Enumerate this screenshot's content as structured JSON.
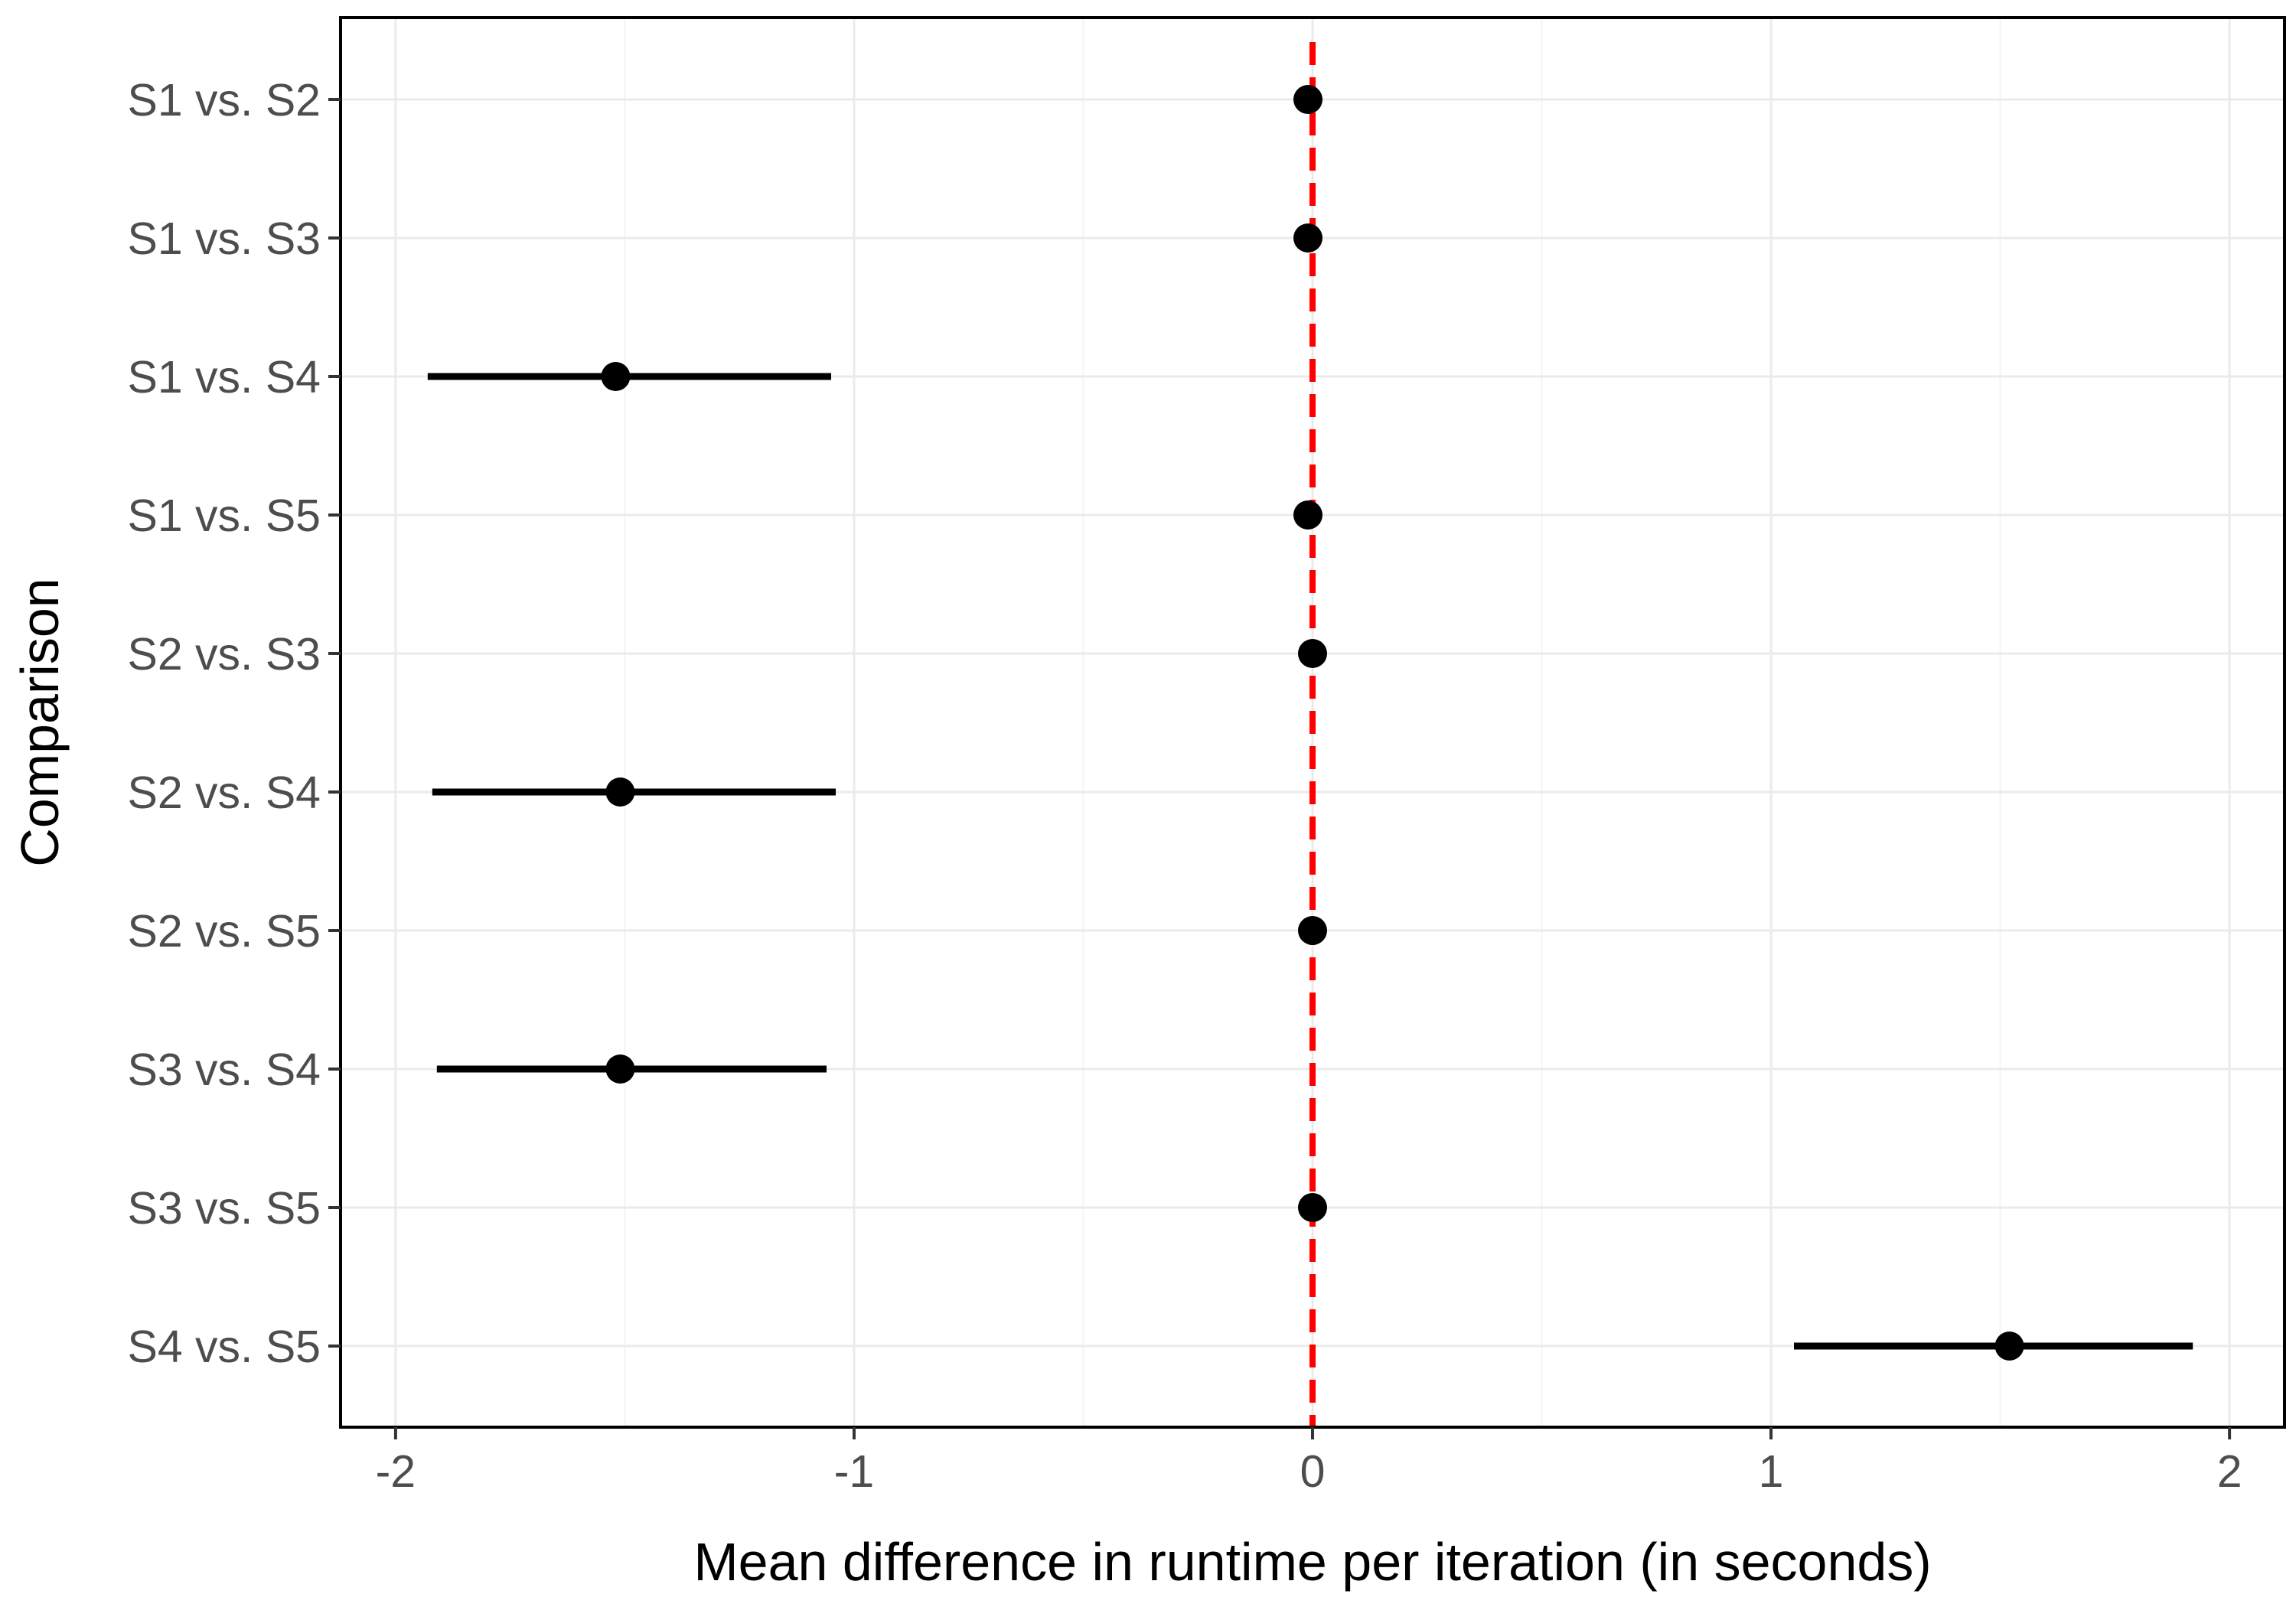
{
  "chart_data": {
    "type": "scatter",
    "subtype": "forest-plot",
    "xlabel": "Mean difference in runtime per iteration (in seconds)",
    "ylabel": "Comparison",
    "xlim": [
      -2.12,
      2.12
    ],
    "xticks": [
      -2,
      -1,
      0,
      1,
      2
    ],
    "xtick_labels": [
      "-2",
      "-1",
      "0",
      "1",
      "2"
    ],
    "categories": [
      "S1 vs. S2",
      "S1 vs. S3",
      "S1 vs. S4",
      "S1 vs. S5",
      "S2 vs. S3",
      "S2 vs. S4",
      "S2 vs. S5",
      "S3 vs. S4",
      "S3 vs. S5",
      "S4 vs. S5"
    ],
    "estimates": [
      -0.01,
      -0.01,
      -1.52,
      -0.01,
      0.0,
      -1.51,
      0.0,
      -1.51,
      0.0,
      1.52
    ],
    "ci_lower": [
      null,
      null,
      -1.93,
      null,
      null,
      -1.92,
      null,
      -1.91,
      null,
      1.05
    ],
    "ci_upper": [
      null,
      null,
      -1.05,
      null,
      null,
      -1.04,
      null,
      -1.06,
      null,
      1.92
    ],
    "reference_line": {
      "x": 0,
      "style": "dashed",
      "color": "#ff0000"
    },
    "grid": true,
    "legend": "none",
    "colors": {
      "point": "#000000",
      "reference": "#ff0000",
      "grid": "#ebebeb"
    }
  }
}
